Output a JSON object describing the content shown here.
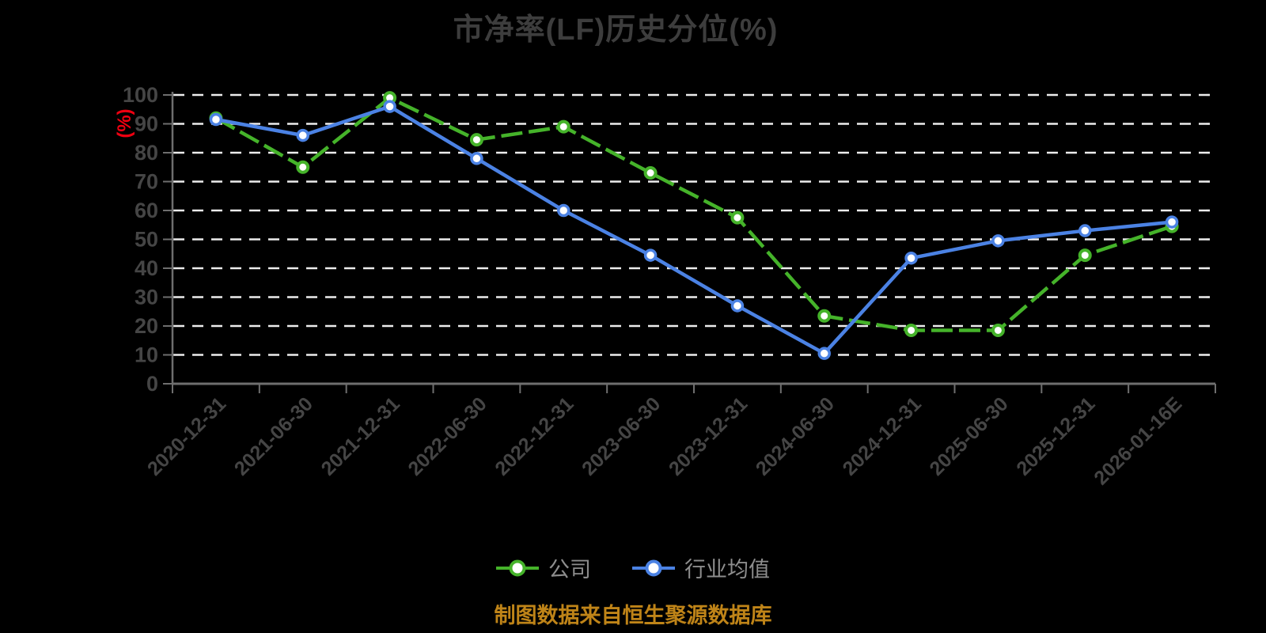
{
  "title": "市净率(LF)历史分位(%)",
  "caption": "制图数据来自恒生聚源数据库",
  "chart_data": {
    "type": "line",
    "title": "市净率(LF)历史分位(%)",
    "ylabel": "(%)",
    "ylim": [
      0,
      100
    ],
    "y_ticks": [
      0,
      10,
      20,
      30,
      40,
      50,
      60,
      70,
      80,
      90,
      100
    ],
    "grid": true,
    "grid_style": "dashed-white",
    "legend_position": "bottom",
    "categories": [
      "2020-12-31",
      "2021-06-30",
      "2021-12-31",
      "2022-06-30",
      "2022-12-31",
      "2023-06-30",
      "2023-12-31",
      "2024-06-30",
      "2024-12-31",
      "2025-06-30",
      "2025-12-31",
      "2026-01-16E"
    ],
    "series": [
      {
        "name": "公司",
        "color": "#45b32a",
        "line_style": "dashed",
        "marker": "circle-white-fill",
        "values": [
          92,
          75,
          99,
          84.5,
          89,
          73,
          57.5,
          23.5,
          18.5,
          18.5,
          44.5,
          54.5
        ]
      },
      {
        "name": "行业均值",
        "color": "#4b82e4",
        "line_style": "solid",
        "marker": "circle-white-fill",
        "values": [
          91.5,
          86,
          96,
          78,
          60,
          44.5,
          27,
          10.5,
          43.5,
          49.5,
          53,
          56
        ]
      }
    ]
  },
  "colors": {
    "background": "#000000",
    "title_text": "#3d3d3d",
    "axis_line": "#6e6e6e",
    "tick_text": "#454545",
    "gridline": "#ececec",
    "ylabel_text": "#ee0011",
    "legend_text": "#8d8d8d",
    "caption_text": "#bf8418",
    "company_green": "#45b32a",
    "industry_blue": "#4b82e4"
  }
}
